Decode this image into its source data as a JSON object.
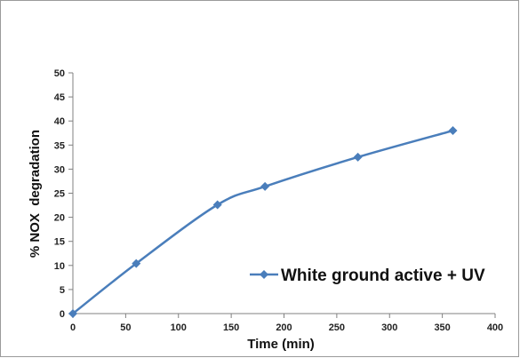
{
  "chart_data": {
    "type": "line",
    "title": "",
    "xlabel": "Time (min)",
    "ylabel": "% NOX  degradation",
    "xlim": [
      0,
      400
    ],
    "ylim": [
      0,
      50
    ],
    "x_ticks": [
      0,
      50,
      100,
      150,
      200,
      250,
      300,
      350,
      400
    ],
    "y_ticks": [
      0,
      5,
      10,
      15,
      20,
      25,
      30,
      35,
      40,
      45,
      50
    ],
    "grid": false,
    "legend_position": "right",
    "series": [
      {
        "name": "White ground active + UV",
        "color": "#4a7ebb",
        "marker": "diamond",
        "smooth": true,
        "x": [
          0,
          60,
          137,
          182,
          270,
          360
        ],
        "y": [
          0,
          10.4,
          22.6,
          26.4,
          32.5,
          38
        ]
      }
    ]
  }
}
